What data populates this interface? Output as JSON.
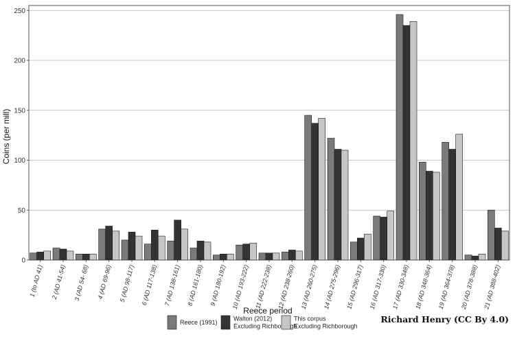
{
  "chart_data": {
    "type": "bar",
    "xlabel": "Reece period",
    "ylabel": "Coins (per mill)",
    "ylim": [
      0,
      255
    ],
    "yticks": [
      0,
      50,
      100,
      150,
      200,
      250
    ],
    "grid": "horizontal",
    "legend_position": "bottom",
    "categories": [
      "1 (to AD 41)",
      "2 (AD 41-54)",
      "3 (AD 54- 68)",
      "4 (AD 69-96)",
      "5 (AD 98-117)",
      "6 (AD 117-138)",
      "7 (AD 138-161)",
      "8 (AD 161-180)",
      "9 (AD 180-192)",
      "10 (AD 193-222)",
      "11 (AD 222-238)",
      "12 (AD 238-260)",
      "13 (AD 260-275)",
      "14 (AD 275-296)",
      "15 (AD 296-317)",
      "16 (AD 317-330)",
      "17 (AD 330-348)",
      "18 (AD 348-364)",
      "19 (AD 364-378)",
      "20 (AD 378-388)",
      "21 (AD 388-402)"
    ],
    "series": [
      {
        "name": "Reece (1991)",
        "color": "#7a7a7a",
        "values": [
          7,
          12,
          6,
          31,
          20,
          16,
          19,
          12,
          5,
          15,
          7,
          8,
          145,
          122,
          18,
          44,
          246,
          98,
          118,
          5,
          50
        ]
      },
      {
        "name": "Walton (2012)\nExcluding Richborough",
        "color": "#333333",
        "values": [
          8,
          11,
          6,
          34,
          28,
          30,
          40,
          19,
          6,
          16,
          7,
          10,
          137,
          111,
          22,
          43,
          235,
          89,
          111,
          4,
          32
        ]
      },
      {
        "name": "This corpus\nExcluding Richborough",
        "color": "#c6c6c6",
        "values": [
          9,
          9,
          6,
          29,
          24,
          24,
          31,
          18,
          6,
          17,
          7,
          9,
          142,
          110,
          26,
          49,
          239,
          88,
          126,
          6,
          29
        ]
      }
    ]
  },
  "credit": "Richard Henry (CC By 4.0)"
}
